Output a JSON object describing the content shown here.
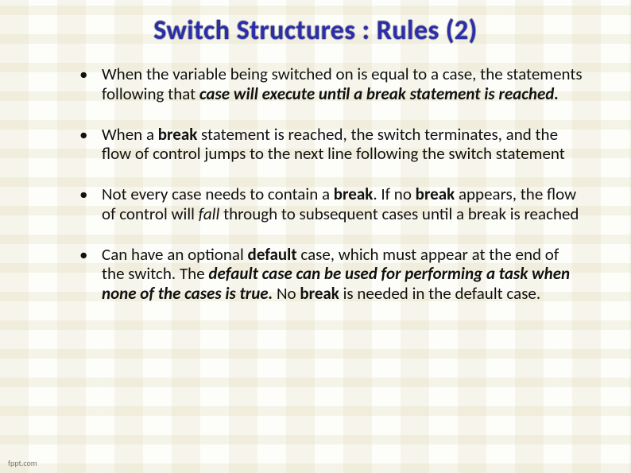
{
  "title": "Switch Structures : Rules (2)",
  "bullets": {
    "b1": {
      "t1": "When the variable being switched on is equal to a case, the statements following that ",
      "t2": "case will execute until a break statement is reached."
    },
    "b2": {
      "t1": "When a ",
      "t2": "break",
      "t3": " statement is reached, the switch terminates, and the flow of control jumps to the next line following the switch statement"
    },
    "b3": {
      "t1": "Not every case needs to contain a ",
      "t2": "break",
      "t3": ". If no ",
      "t4": "break",
      "t5": " appears, the flow of control will ",
      "t6": "fall",
      "t7": " through to subsequent cases until a break is reached"
    },
    "b4": {
      "t1": "Can have an optional ",
      "t2": "default",
      "t3": " case, which must appear at the end of the switch. The ",
      "t4": "default case can be used for performing a task when none of the cases is true.",
      "t5": " No ",
      "t6": "break",
      "t7": "  is needed in the default case."
    }
  },
  "footer": "fppt.com",
  "colors": {
    "title_color": "#2b2ea8",
    "text_color": "#111111",
    "background": "#fdfdfa"
  },
  "fonts": {
    "title_size_pt": 26,
    "body_size_pt": 16
  }
}
